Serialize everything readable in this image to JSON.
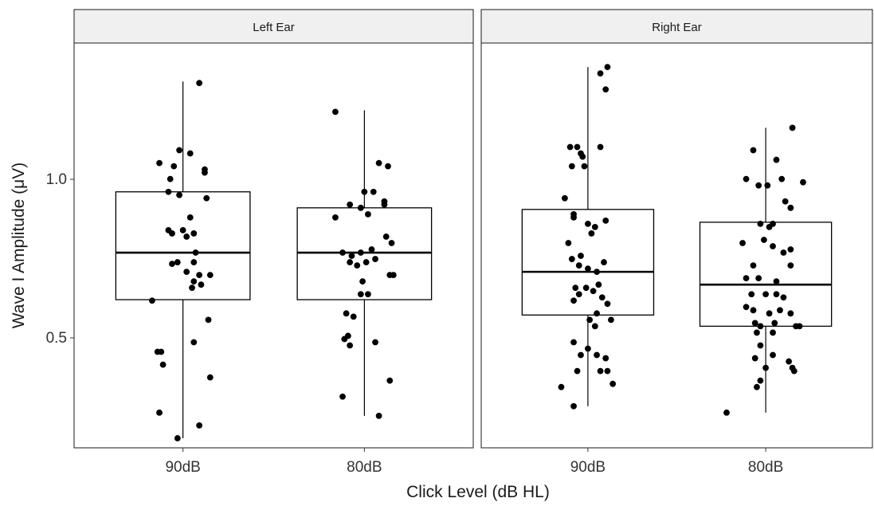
{
  "chart_data": {
    "type": "boxplot",
    "xlabel": "Click Level (dB HL)",
    "ylabel": "Wave I Amplitude (μV)",
    "ylim": [
      0.18,
      1.445
    ],
    "yticks": [
      0.5,
      1.0
    ],
    "ytick_labels": [
      "0.5",
      "1.0"
    ],
    "categories": [
      "90dB",
      "80dB"
    ],
    "grid": false,
    "legend": "none",
    "colors": {
      "point": "#000000",
      "box": "#000000",
      "strip_fill": "#f0f0f0",
      "border": "#1a1a1a"
    },
    "panels": [
      {
        "strip": "Left Ear",
        "groups": [
          {
            "category": "90dB",
            "box": {
              "whisker_low": 0.21,
              "q1": 0.643,
              "median": 0.79,
              "q3": 0.98,
              "whisker_high": 1.325
            },
            "points": [
              [
                -0.13,
                1.07
              ],
              [
                -0.02,
                1.11
              ],
              [
                0.04,
                1.1
              ],
              [
                -0.07,
                1.02
              ],
              [
                0.12,
                1.05
              ],
              [
                0.12,
                1.04
              ],
              [
                0.13,
                0.96
              ],
              [
                -0.08,
                0.98
              ],
              [
                -0.02,
                0.97
              ],
              [
                -0.05,
                1.06
              ],
              [
                0.04,
                0.9
              ],
              [
                -0.08,
                0.86
              ],
              [
                -0.06,
                0.85
              ],
              [
                0.0,
                0.86
              ],
              [
                0.02,
                0.84
              ],
              [
                0.06,
                0.85
              ],
              [
                -0.03,
                0.76
              ],
              [
                0.07,
                0.79
              ],
              [
                0.06,
                0.76
              ],
              [
                0.09,
                0.72
              ],
              [
                0.02,
                0.73
              ],
              [
                0.06,
                0.7
              ],
              [
                0.05,
                0.68
              ],
              [
                0.1,
                0.69
              ],
              [
                0.15,
                0.72
              ],
              [
                -0.17,
                0.64
              ],
              [
                0.14,
                0.58
              ],
              [
                0.06,
                0.51
              ],
              [
                -0.12,
                0.48
              ],
              [
                -0.14,
                0.48
              ],
              [
                -0.11,
                0.44
              ],
              [
                0.15,
                0.4
              ],
              [
                -0.13,
                0.29
              ],
              [
                -0.03,
                0.21
              ],
              [
                0.09,
                0.25
              ],
              [
                0.09,
                1.32
              ],
              [
                -0.06,
                0.755
              ]
            ]
          },
          {
            "category": "80dB",
            "box": {
              "whisker_low": 0.28,
              "q1": 0.643,
              "median": 0.79,
              "q3": 0.93,
              "whisker_high": 1.235
            },
            "points": [
              [
                -0.16,
                0.9
              ],
              [
                -0.08,
                0.94
              ],
              [
                -0.02,
                0.93
              ],
              [
                0.08,
                1.07
              ],
              [
                0.13,
                1.06
              ],
              [
                0.0,
                0.98
              ],
              [
                0.05,
                0.98
              ],
              [
                0.11,
                0.95
              ],
              [
                0.11,
                0.94
              ],
              [
                -0.12,
                0.79
              ],
              [
                -0.07,
                0.78
              ],
              [
                -0.02,
                0.79
              ],
              [
                0.04,
                0.8
              ],
              [
                0.12,
                0.84
              ],
              [
                0.15,
                0.82
              ],
              [
                -0.08,
                0.76
              ],
              [
                -0.04,
                0.75
              ],
              [
                0.01,
                0.76
              ],
              [
                0.06,
                0.77
              ],
              [
                0.14,
                0.72
              ],
              [
                0.16,
                0.72
              ],
              [
                0.02,
                0.91
              ],
              [
                -0.01,
                0.7
              ],
              [
                -0.02,
                0.66
              ],
              [
                0.02,
                0.66
              ],
              [
                -0.1,
                0.6
              ],
              [
                -0.06,
                0.59
              ],
              [
                -0.09,
                0.53
              ],
              [
                -0.11,
                0.52
              ],
              [
                -0.08,
                0.5
              ],
              [
                0.06,
                0.51
              ],
              [
                0.14,
                0.39
              ],
              [
                -0.12,
                0.34
              ],
              [
                0.08,
                0.28
              ],
              [
                -0.16,
                1.23
              ]
            ]
          }
        ]
      },
      {
        "strip": "Right Ear",
        "groups": [
          {
            "category": "90dB",
            "box": {
              "whisker_low": 0.31,
              "q1": 0.595,
              "median": 0.73,
              "q3": 0.925,
              "whisker_high": 1.37
            },
            "points": [
              [
                0.07,
                1.35
              ],
              [
                0.11,
                1.37
              ],
              [
                0.1,
                1.3
              ],
              [
                -0.1,
                1.12
              ],
              [
                -0.06,
                1.12
              ],
              [
                -0.04,
                1.1
              ],
              [
                -0.03,
                1.09
              ],
              [
                0.07,
                1.12
              ],
              [
                -0.02,
                1.06
              ],
              [
                -0.09,
                1.06
              ],
              [
                -0.13,
                0.96
              ],
              [
                -0.08,
                0.9
              ],
              [
                -0.08,
                0.91
              ],
              [
                0.0,
                0.88
              ],
              [
                0.04,
                0.87
              ],
              [
                -0.11,
                0.82
              ],
              [
                0.02,
                0.85
              ],
              [
                -0.04,
                0.78
              ],
              [
                -0.09,
                0.77
              ],
              [
                -0.05,
                0.75
              ],
              [
                0.0,
                0.74
              ],
              [
                0.05,
                0.73
              ],
              [
                0.09,
                0.76
              ],
              [
                -0.07,
                0.68
              ],
              [
                -0.05,
                0.66
              ],
              [
                -0.01,
                0.68
              ],
              [
                0.03,
                0.67
              ],
              [
                0.08,
                0.65
              ],
              [
                0.11,
                0.63
              ],
              [
                -0.08,
                0.64
              ],
              [
                0.01,
                0.58
              ],
              [
                0.05,
                0.6
              ],
              [
                0.13,
                0.58
              ],
              [
                0.04,
                0.56
              ],
              [
                -0.08,
                0.51
              ],
              [
                -0.04,
                0.47
              ],
              [
                0.0,
                0.49
              ],
              [
                0.05,
                0.47
              ],
              [
                0.1,
                0.46
              ],
              [
                -0.06,
                0.42
              ],
              [
                0.07,
                0.42
              ],
              [
                0.11,
                0.42
              ],
              [
                0.14,
                0.38
              ],
              [
                -0.15,
                0.37
              ],
              [
                -0.08,
                0.31
              ],
              [
                0.1,
                0.89
              ],
              [
                0.06,
                0.69
              ]
            ]
          },
          {
            "category": "80dB",
            "box": {
              "whisker_low": 0.29,
              "q1": 0.56,
              "median": 0.69,
              "q3": 0.885,
              "whisker_high": 1.18
            },
            "points": [
              [
                -0.07,
                1.11
              ],
              [
                0.15,
                1.18
              ],
              [
                0.06,
                1.08
              ],
              [
                0.09,
                1.02
              ],
              [
                -0.11,
                1.02
              ],
              [
                -0.04,
                1.0
              ],
              [
                0.01,
                1.0
              ],
              [
                0.11,
                0.95
              ],
              [
                0.21,
                1.01
              ],
              [
                0.14,
                0.93
              ],
              [
                -0.03,
                0.88
              ],
              [
                0.04,
                0.88
              ],
              [
                0.02,
                0.87
              ],
              [
                -0.13,
                0.82
              ],
              [
                -0.01,
                0.83
              ],
              [
                0.04,
                0.81
              ],
              [
                0.1,
                0.79
              ],
              [
                0.14,
                0.8
              ],
              [
                -0.07,
                0.75
              ],
              [
                0.14,
                0.75
              ],
              [
                -0.11,
                0.71
              ],
              [
                -0.04,
                0.71
              ],
              [
                0.06,
                0.7
              ],
              [
                -0.08,
                0.66
              ],
              [
                0.0,
                0.66
              ],
              [
                0.06,
                0.66
              ],
              [
                0.1,
                0.65
              ],
              [
                -0.11,
                0.62
              ],
              [
                -0.07,
                0.61
              ],
              [
                0.02,
                0.6
              ],
              [
                0.08,
                0.61
              ],
              [
                0.14,
                0.6
              ],
              [
                -0.06,
                0.57
              ],
              [
                -0.03,
                0.56
              ],
              [
                0.05,
                0.57
              ],
              [
                0.17,
                0.56
              ],
              [
                0.19,
                0.56
              ],
              [
                -0.05,
                0.54
              ],
              [
                0.04,
                0.54
              ],
              [
                -0.03,
                0.5
              ],
              [
                -0.06,
                0.46
              ],
              [
                0.04,
                0.47
              ],
              [
                0.13,
                0.45
              ],
              [
                0.15,
                0.43
              ],
              [
                0.0,
                0.43
              ],
              [
                -0.03,
                0.39
              ],
              [
                -0.05,
                0.37
              ],
              [
                -0.22,
                0.29
              ],
              [
                0.16,
                0.42
              ]
            ]
          }
        ]
      }
    ]
  }
}
